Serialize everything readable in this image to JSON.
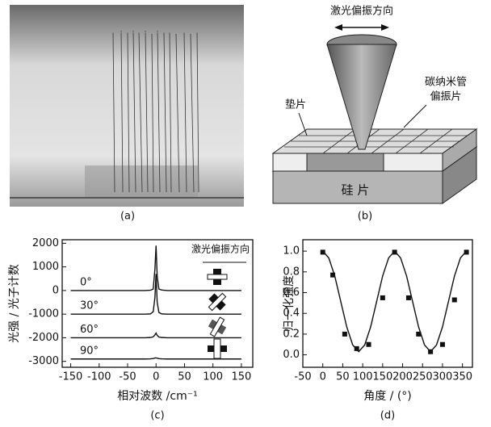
{
  "figure": {
    "photo_caption": "(a)",
    "diagram_caption": "(b)",
    "diagram_labels": {
      "laser": "激光偏振方向",
      "cnt": "碳纳米管",
      "polarizer": "偏振片",
      "spacer": "垫片",
      "silicon": "硅 片"
    }
  },
  "chart_data": [
    {
      "type": "line",
      "caption": "(c)",
      "xlabel": "相对波数 /cm⁻¹",
      "ylabel": "光强 / 光子计数",
      "annotation": "激光偏振方向",
      "x": [
        -150,
        -100,
        -50,
        -20,
        -10,
        -5,
        -2,
        0,
        2,
        5,
        10,
        20,
        50,
        100,
        150
      ],
      "series": [
        {
          "name": "0°",
          "color": "#111",
          "values": [
            0,
            0,
            0,
            0,
            10,
            60,
            900,
            1900,
            600,
            60,
            20,
            0,
            0,
            0,
            0
          ]
        },
        {
          "name": "30°",
          "color": "#111",
          "values": [
            -1000,
            -1000,
            -1000,
            -1000,
            -990,
            -900,
            -300,
            700,
            -500,
            -930,
            -990,
            -1000,
            -1000,
            -1000,
            -1000
          ]
        },
        {
          "name": "60°",
          "color": "#111",
          "values": [
            -2000,
            -2000,
            -2000,
            -2000,
            -1990,
            -1960,
            -1880,
            -1800,
            -1900,
            -1970,
            -1990,
            -2000,
            -2000,
            -2000,
            -2000
          ]
        },
        {
          "name": "90°",
          "color": "#111",
          "values": [
            -2900,
            -2900,
            -2900,
            -2900,
            -2895,
            -2880,
            -2860,
            -2850,
            -2865,
            -2885,
            -2895,
            -2900,
            -2900,
            -2900,
            -2900
          ]
        }
      ],
      "xlim": [
        -165,
        170
      ],
      "ylim": [
        -3250,
        2150
      ],
      "xticks": [
        -150,
        -100,
        -50,
        0,
        50,
        100,
        150
      ],
      "yticks": [
        -3000,
        -2000,
        -1000,
        0,
        1000,
        2000
      ]
    },
    {
      "type": "scatter",
      "caption": "(d)",
      "xlabel": "角度 / (°)",
      "ylabel": "归一化强度",
      "series": [
        {
          "color": "#111",
          "x": [
            0,
            25,
            55,
            85,
            115,
            150,
            180,
            215,
            240,
            270,
            300,
            330,
            360
          ],
          "values": [
            0.99,
            0.77,
            0.2,
            0.06,
            0.1,
            0.55,
            0.99,
            0.55,
            0.2,
            0.03,
            0.1,
            0.53,
            0.99
          ]
        },
        {
          "type": "line",
          "color": "#111",
          "x": [
            0,
            15,
            30,
            45,
            60,
            75,
            90,
            105,
            120,
            135,
            150,
            165,
            180,
            195,
            210,
            225,
            240,
            255,
            270,
            285,
            300,
            315,
            330,
            345,
            360
          ],
          "values": [
            1.0,
            0.935,
            0.76,
            0.515,
            0.27,
            0.095,
            0.03,
            0.095,
            0.27,
            0.515,
            0.76,
            0.935,
            1.0,
            0.935,
            0.76,
            0.515,
            0.27,
            0.095,
            0.03,
            0.095,
            0.27,
            0.515,
            0.76,
            0.935,
            1.0
          ]
        }
      ],
      "xlim": [
        -50,
        375
      ],
      "ylim": [
        -0.12,
        1.11
      ],
      "xticks": [
        -50,
        0,
        50,
        100,
        150,
        200,
        250,
        300,
        350
      ],
      "yticks": [
        {
          "value": 0,
          "label": "0.0"
        },
        0.2,
        0.4,
        0.6,
        0.8,
        {
          "value": 1,
          "label": "1.0"
        }
      ]
    }
  ]
}
